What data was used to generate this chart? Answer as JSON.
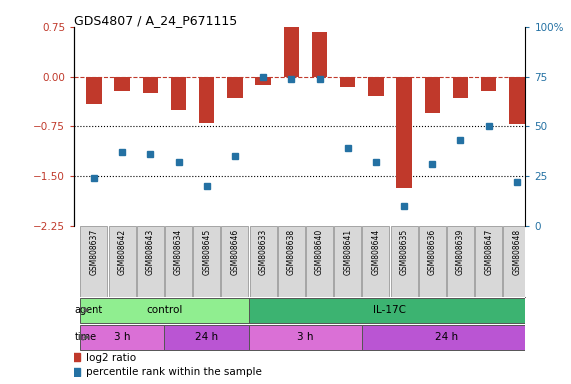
{
  "title": "GDS4807 / A_24_P671115",
  "samples": [
    "GSM808637",
    "GSM808642",
    "GSM808643",
    "GSM808634",
    "GSM808645",
    "GSM808646",
    "GSM808633",
    "GSM808638",
    "GSM808640",
    "GSM808641",
    "GSM808644",
    "GSM808635",
    "GSM808636",
    "GSM808639",
    "GSM808647",
    "GSM808648"
  ],
  "log2_ratio": [
    -0.42,
    -0.22,
    -0.25,
    -0.5,
    -0.7,
    -0.32,
    -0.12,
    0.75,
    0.68,
    -0.16,
    -0.3,
    -1.68,
    -0.55,
    -0.32,
    -0.22,
    -0.72
  ],
  "percentile_rank": [
    24,
    37,
    36,
    32,
    20,
    35,
    75,
    74,
    74,
    39,
    32,
    10,
    31,
    43,
    50,
    22
  ],
  "ylim_left": [
    -2.25,
    0.75
  ],
  "ylim_right": [
    0,
    100
  ],
  "yticks_left": [
    0.75,
    0,
    -0.75,
    -1.5,
    -2.25
  ],
  "yticks_right": [
    100,
    75,
    50,
    25,
    0
  ],
  "bar_color": "#c0392b",
  "dot_color": "#2471a3",
  "agent_groups": [
    {
      "label": "control",
      "start": 0,
      "end": 6,
      "color": "#90ee90"
    },
    {
      "label": "IL-17C",
      "start": 6,
      "end": 16,
      "color": "#3cb371"
    }
  ],
  "time_groups": [
    {
      "label": "3 h",
      "start": 0,
      "end": 3,
      "color": "#da70d6"
    },
    {
      "label": "24 h",
      "start": 3,
      "end": 6,
      "color": "#ba55d3"
    },
    {
      "label": "3 h",
      "start": 6,
      "end": 10,
      "color": "#da70d6"
    },
    {
      "label": "24 h",
      "start": 10,
      "end": 16,
      "color": "#ba55d3"
    }
  ],
  "legend_bar_label": "log2 ratio",
  "legend_dot_label": "percentile rank within the sample",
  "agent_label": "agent",
  "time_label": "time",
  "xlim": [
    -0.7,
    15.3
  ]
}
